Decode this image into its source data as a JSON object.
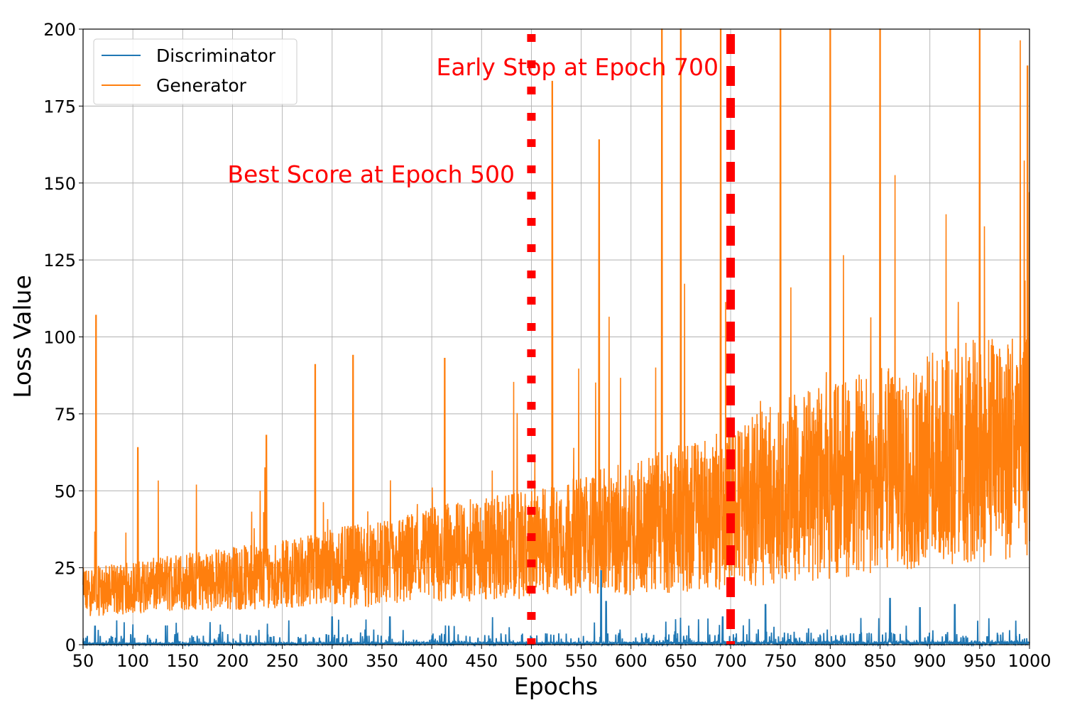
{
  "chart_data": {
    "type": "line",
    "title": "",
    "xlabel": "Epochs",
    "ylabel": "Loss Value",
    "xlim": [
      50,
      1000
    ],
    "ylim": [
      0,
      200
    ],
    "x_ticks": [
      50,
      100,
      150,
      200,
      250,
      300,
      350,
      400,
      450,
      500,
      550,
      600,
      650,
      700,
      750,
      800,
      850,
      900,
      950,
      1000
    ],
    "y_ticks": [
      0,
      25,
      50,
      75,
      100,
      125,
      150,
      175,
      200
    ],
    "grid": true,
    "legend_position": "top-left",
    "series": [
      {
        "name": "Discriminator",
        "color": "#1f77b4",
        "x": [
          50,
          100,
          150,
          200,
          250,
          300,
          350,
          400,
          450,
          500,
          550,
          600,
          650,
          700,
          750,
          800,
          850,
          900,
          950,
          1000
        ],
        "baseline": [
          0.5,
          0.5,
          0.5,
          0.6,
          0.6,
          0.7,
          0.7,
          0.8,
          0.8,
          0.8,
          0.8,
          0.9,
          0.9,
          0.9,
          1.0,
          1.0,
          1.0,
          1.0,
          1.0,
          1.0
        ],
        "peaks": [
          {
            "x": 62,
            "y": 6
          },
          {
            "x": 300,
            "y": 9
          },
          {
            "x": 358,
            "y": 9
          },
          {
            "x": 570,
            "y": 24
          },
          {
            "x": 575,
            "y": 14
          },
          {
            "x": 692,
            "y": 9
          },
          {
            "x": 735,
            "y": 13
          },
          {
            "x": 860,
            "y": 15
          },
          {
            "x": 890,
            "y": 12
          },
          {
            "x": 925,
            "y": 13
          }
        ]
      },
      {
        "name": "Generator",
        "color": "#ff7f0e",
        "x": [
          50,
          100,
          150,
          200,
          250,
          300,
          350,
          400,
          450,
          500,
          550,
          600,
          650,
          700,
          750,
          800,
          850,
          900,
          950,
          1000
        ],
        "band_low": [
          9,
          10,
          11,
          11,
          12,
          12,
          12,
          13,
          14,
          15,
          16,
          16,
          17,
          18,
          20,
          21,
          23,
          24,
          26,
          28
        ],
        "band_high": [
          25,
          27,
          30,
          32,
          34,
          38,
          40,
          45,
          48,
          50,
          55,
          60,
          65,
          70,
          80,
          85,
          90,
          95,
          100,
          105
        ],
        "peaks": [
          {
            "x": 63,
            "y": 107
          },
          {
            "x": 105,
            "y": 64
          },
          {
            "x": 234,
            "y": 68
          },
          {
            "x": 283,
            "y": 91
          },
          {
            "x": 321,
            "y": 94
          },
          {
            "x": 413,
            "y": 93
          },
          {
            "x": 521,
            "y": 183
          },
          {
            "x": 568,
            "y": 164
          },
          {
            "x": 631,
            "y": 200
          },
          {
            "x": 650,
            "y": 200
          },
          {
            "x": 690,
            "y": 200
          },
          {
            "x": 750,
            "y": 200
          },
          {
            "x": 800,
            "y": 200
          },
          {
            "x": 850,
            "y": 200
          },
          {
            "x": 950,
            "y": 200
          },
          {
            "x": 998,
            "y": 188
          }
        ]
      }
    ],
    "annotations": [
      {
        "text": "Best Score at Epoch 500",
        "x": 500,
        "anchor_y": 152,
        "color": "#ff0000",
        "line_style": "dotted"
      },
      {
        "text": "Early Stop at Epoch 700",
        "x": 700,
        "anchor_y": 187,
        "color": "#ff0000",
        "line_style": "dashed"
      }
    ]
  }
}
